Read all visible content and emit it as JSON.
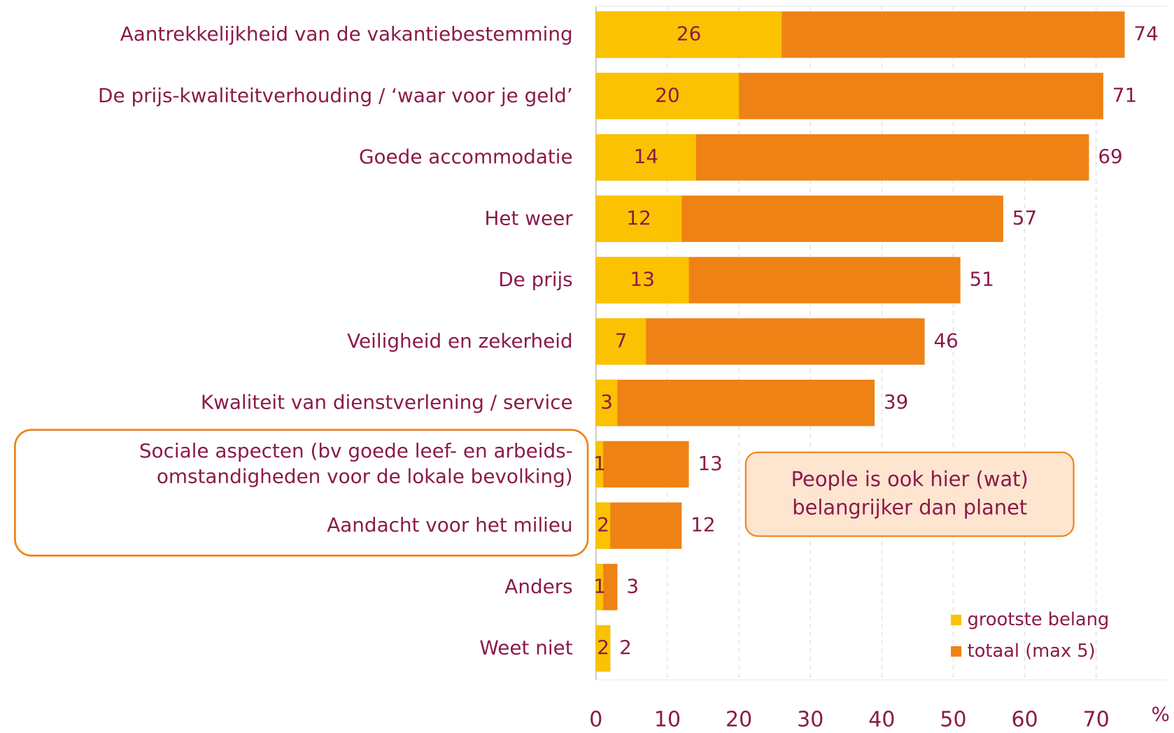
{
  "chart_data": {
    "type": "bar",
    "orientation": "horizontal",
    "barmode": "overlay",
    "categories": [
      "Aantrekkelijkheid van de vakantiebestemming",
      "De prijs-kwaliteitverhouding / ‘waar voor je geld’",
      "Goede accommodatie",
      "Het weer",
      "De prijs",
      "Veiligheid en zekerheid",
      "Kwaliteit van dienstverlening / service",
      "Sociale aspecten (bv goede leef- en arbeids-omstandigheden voor de lokale bevolking)",
      "Aandacht voor het milieu",
      "Anders",
      "Weet niet"
    ],
    "series": [
      {
        "name": "totaal (max 5)",
        "color": "#ef8215",
        "values": [
          74,
          71,
          69,
          57,
          51,
          46,
          39,
          13,
          12,
          3,
          2
        ]
      },
      {
        "name": "grootste belang",
        "color": "#fac200",
        "values": [
          26,
          20,
          14,
          12,
          13,
          7,
          3,
          1,
          2,
          1,
          2
        ]
      }
    ],
    "legend_order": [
      1,
      0
    ],
    "xlabel": "%",
    "xlim": [
      0,
      80
    ],
    "xticks": [
      0,
      10,
      20,
      30,
      40,
      50,
      60,
      70
    ],
    "grid": true,
    "legend": "lower right",
    "annotation": "People is ook hier (wat) belangrijker dan planet"
  }
}
